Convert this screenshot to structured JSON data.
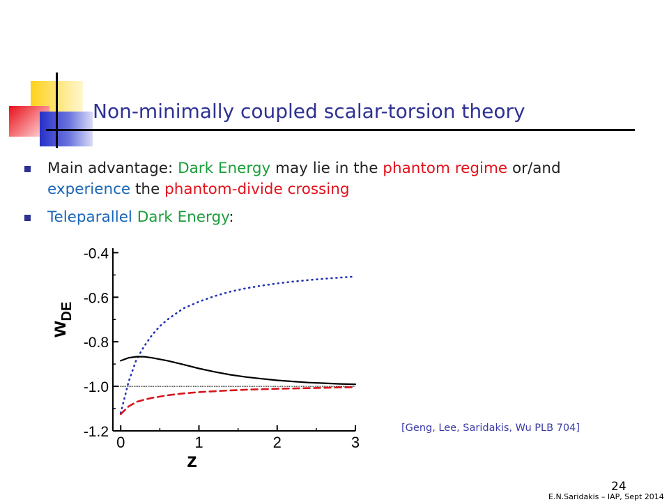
{
  "slide": {
    "title": "Non-minimally coupled scalar-torsion theory",
    "bullets": [
      {
        "segments": [
          {
            "text": "Main advantage: ",
            "color": "default"
          },
          {
            "text": "Dark Energy",
            "color": "green"
          },
          {
            "text": " may lie in the ",
            "color": "default"
          },
          {
            "text": "phantom regime",
            "color": "red"
          },
          {
            "text": " or/and",
            "color": "default"
          }
        ],
        "continuation": [
          {
            "text": "experience",
            "color": "blue"
          },
          {
            "text": " the ",
            "color": "default"
          },
          {
            "text": "phantom-divide crossing",
            "color": "red"
          }
        ]
      },
      {
        "segments": [
          {
            "text": "Teleparallel",
            "color": "blue"
          },
          {
            "text": " Dark Energy",
            "color": "green"
          },
          {
            "text": ":",
            "color": "default"
          }
        ]
      }
    ],
    "citation": "[Geng, Lee, Saridakis, Wu  PLB 704]",
    "page_number": "24",
    "footer": "E.N.Saridakis – IAP, Sept 2014"
  },
  "colors": {
    "default": "#222222",
    "green": "#1a9e3a",
    "red": "#e3111b",
    "blue": "#1a66b8"
  },
  "chart_data": {
    "type": "line",
    "xlabel": "z",
    "ylabel_main": "w",
    "ylabel_sub": "DE",
    "xlim": [
      -0.1,
      3.0
    ],
    "ylim": [
      -1.2,
      -0.38
    ],
    "xticks": [
      0,
      1,
      2,
      3
    ],
    "xtick_labels": [
      "0",
      "1",
      "2",
      "3"
    ],
    "yticks": [
      -0.4,
      -0.6,
      -0.8,
      -1.0,
      -1.2
    ],
    "ytick_labels": [
      "-0.4",
      "-0.6",
      "-0.8",
      "-1.0",
      "-1.2"
    ],
    "reference_line": -1.0,
    "series": [
      {
        "style": "dotted",
        "color": "#1f2fb8",
        "x": [
          0.0,
          0.1,
          0.2,
          0.3,
          0.4,
          0.5,
          0.6,
          0.8,
          1.0,
          1.2,
          1.4,
          1.6,
          1.8,
          2.0,
          2.2,
          2.4,
          2.6,
          2.8,
          3.0
        ],
        "y": [
          -1.12,
          -0.98,
          -0.88,
          -0.82,
          -0.77,
          -0.73,
          -0.7,
          -0.65,
          -0.62,
          -0.595,
          -0.575,
          -0.56,
          -0.548,
          -0.538,
          -0.53,
          -0.523,
          -0.517,
          -0.512,
          -0.507
        ]
      },
      {
        "style": "solid",
        "color": "#000000",
        "x": [
          0.0,
          0.1,
          0.2,
          0.3,
          0.4,
          0.6,
          0.8,
          1.0,
          1.2,
          1.4,
          1.6,
          1.8,
          2.0,
          2.2,
          2.4,
          2.6,
          2.8,
          3.0
        ],
        "y": [
          -0.885,
          -0.872,
          -0.867,
          -0.867,
          -0.872,
          -0.885,
          -0.902,
          -0.92,
          -0.935,
          -0.948,
          -0.958,
          -0.966,
          -0.973,
          -0.978,
          -0.983,
          -0.986,
          -0.989,
          -0.991
        ]
      },
      {
        "style": "dashed",
        "color": "#d8141c",
        "x": [
          0.0,
          0.1,
          0.2,
          0.3,
          0.4,
          0.6,
          0.8,
          1.0,
          1.3,
          1.6,
          2.0,
          2.4,
          2.8,
          3.0
        ],
        "y": [
          -1.125,
          -1.09,
          -1.07,
          -1.06,
          -1.052,
          -1.04,
          -1.032,
          -1.026,
          -1.02,
          -1.015,
          -1.011,
          -1.008,
          -1.005,
          -1.004
        ]
      }
    ]
  }
}
